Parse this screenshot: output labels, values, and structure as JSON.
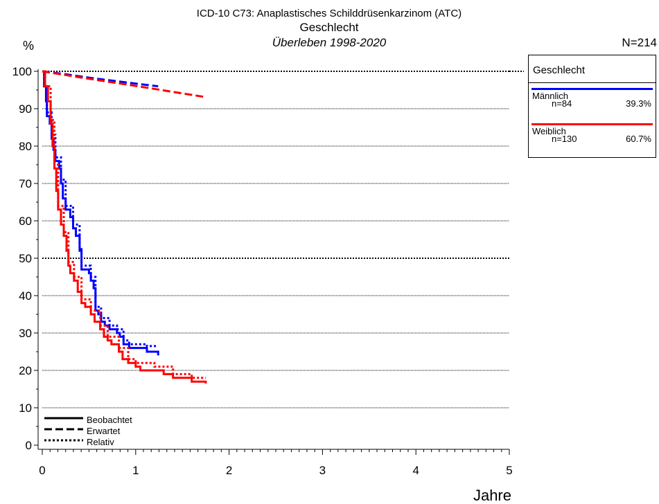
{
  "chart_data": {
    "type": "line",
    "title": "ICD-10 C73: Anaplastisches Schilddrüsenkarzinom (ATC)",
    "subtitle": "Geschlecht",
    "subtitle2": "Überleben 1998-2020",
    "n_total": "N=214",
    "ylabel": "%",
    "xlabel": "Jahre",
    "xlim": [
      0,
      5
    ],
    "ylim": [
      0,
      100
    ],
    "xticks": [
      "0",
      "1",
      "2",
      "3",
      "4",
      "5"
    ],
    "yticks": [
      "0",
      "10",
      "20",
      "30",
      "40",
      "50",
      "60",
      "70",
      "80",
      "90",
      "100"
    ],
    "grid": "horizontal dotted",
    "line_styles": [
      {
        "label": "Beobachtet",
        "dash": "solid"
      },
      {
        "label": "Erwartet",
        "dash": "dashed"
      },
      {
        "label": "Relativ",
        "dash": "dotted"
      }
    ],
    "legend": {
      "title": "Geschlecht",
      "placement": "top-right",
      "entries": [
        {
          "name": "Männlich",
          "n": "n=84",
          "pct": "39.3%",
          "color": "#0000ff"
        },
        {
          "name": "Weiblich",
          "n": "n=130",
          "pct": "60.7%",
          "color": "#ff0000"
        }
      ]
    },
    "series": [
      {
        "name": "Männlich",
        "color": "#0000ff",
        "observed": [
          [
            0,
            100
          ],
          [
            0.02,
            96
          ],
          [
            0.04,
            92
          ],
          [
            0.05,
            88
          ],
          [
            0.08,
            86
          ],
          [
            0.1,
            82
          ],
          [
            0.12,
            79
          ],
          [
            0.14,
            76
          ],
          [
            0.18,
            74
          ],
          [
            0.2,
            70
          ],
          [
            0.22,
            66
          ],
          [
            0.25,
            63
          ],
          [
            0.3,
            61
          ],
          [
            0.33,
            58
          ],
          [
            0.36,
            56
          ],
          [
            0.4,
            52
          ],
          [
            0.42,
            47
          ],
          [
            0.5,
            46
          ],
          [
            0.52,
            44
          ],
          [
            0.55,
            42
          ],
          [
            0.57,
            36
          ],
          [
            0.6,
            35
          ],
          [
            0.63,
            33
          ],
          [
            0.67,
            32
          ],
          [
            0.72,
            31
          ],
          [
            0.8,
            30
          ],
          [
            0.83,
            29
          ],
          [
            0.87,
            27
          ],
          [
            0.93,
            26
          ],
          [
            1.05,
            26
          ],
          [
            1.12,
            25
          ],
          [
            1.22,
            25
          ],
          [
            1.24,
            24
          ]
        ],
        "expected": [
          [
            0,
            100
          ],
          [
            0.25,
            99.2
          ],
          [
            0.5,
            98.3
          ],
          [
            0.75,
            97.5
          ],
          [
            1.0,
            96.7
          ],
          [
            1.24,
            96.0
          ]
        ],
        "relative": [
          [
            0,
            100
          ],
          [
            0.02,
            96
          ],
          [
            0.05,
            89
          ],
          [
            0.1,
            83
          ],
          [
            0.14,
            77
          ],
          [
            0.2,
            71
          ],
          [
            0.25,
            64
          ],
          [
            0.33,
            59
          ],
          [
            0.4,
            53
          ],
          [
            0.42,
            48
          ],
          [
            0.52,
            45
          ],
          [
            0.57,
            37
          ],
          [
            0.63,
            34
          ],
          [
            0.72,
            32
          ],
          [
            0.8,
            31
          ],
          [
            0.87,
            28
          ],
          [
            0.93,
            27
          ],
          [
            1.12,
            26.5
          ],
          [
            1.24,
            26.5
          ]
        ]
      },
      {
        "name": "Weiblich",
        "color": "#ff0000",
        "observed": [
          [
            0,
            100
          ],
          [
            0.03,
            96
          ],
          [
            0.06,
            92
          ],
          [
            0.09,
            86
          ],
          [
            0.11,
            80
          ],
          [
            0.13,
            74
          ],
          [
            0.15,
            68
          ],
          [
            0.17,
            63
          ],
          [
            0.2,
            59
          ],
          [
            0.23,
            56
          ],
          [
            0.26,
            52
          ],
          [
            0.28,
            48
          ],
          [
            0.3,
            46
          ],
          [
            0.34,
            44
          ],
          [
            0.38,
            41
          ],
          [
            0.42,
            38
          ],
          [
            0.46,
            37
          ],
          [
            0.52,
            35
          ],
          [
            0.56,
            33
          ],
          [
            0.62,
            31
          ],
          [
            0.66,
            29
          ],
          [
            0.7,
            28
          ],
          [
            0.74,
            27
          ],
          [
            0.82,
            25
          ],
          [
            0.86,
            23
          ],
          [
            0.92,
            22
          ],
          [
            1.0,
            21
          ],
          [
            1.05,
            20
          ],
          [
            1.2,
            20
          ],
          [
            1.3,
            19
          ],
          [
            1.4,
            18
          ],
          [
            1.55,
            18
          ],
          [
            1.6,
            17
          ],
          [
            1.75,
            16.5
          ]
        ],
        "expected": [
          [
            0,
            100
          ],
          [
            0.5,
            98
          ],
          [
            1.0,
            96.1
          ],
          [
            1.5,
            94.1
          ],
          [
            1.75,
            93.1
          ]
        ],
        "relative": [
          [
            0,
            100
          ],
          [
            0.03,
            96
          ],
          [
            0.09,
            87
          ],
          [
            0.13,
            75
          ],
          [
            0.17,
            64
          ],
          [
            0.23,
            57
          ],
          [
            0.28,
            49
          ],
          [
            0.34,
            45
          ],
          [
            0.42,
            39
          ],
          [
            0.52,
            36
          ],
          [
            0.62,
            32
          ],
          [
            0.7,
            29
          ],
          [
            0.82,
            26
          ],
          [
            0.92,
            23
          ],
          [
            1.0,
            22
          ],
          [
            1.2,
            21
          ],
          [
            1.4,
            19
          ],
          [
            1.55,
            19
          ],
          [
            1.6,
            18
          ],
          [
            1.75,
            18
          ]
        ]
      }
    ]
  }
}
